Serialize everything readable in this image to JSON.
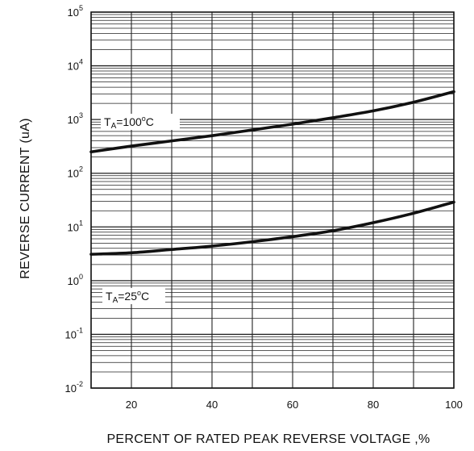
{
  "chart_data": {
    "type": "line",
    "xlabel": "PERCENT OF RATED PEAK REVERSE VOLTAGE ,%",
    "ylabel": "REVERSE CURRENT (uA)",
    "xlim": [
      10,
      100
    ],
    "ylim": [
      0.01,
      100000
    ],
    "yscale": "log",
    "x_ticks": [
      20,
      40,
      60,
      80,
      100
    ],
    "y_ticks": [
      {
        "base": "10",
        "exp": "-2",
        "value": 0.01
      },
      {
        "base": "10",
        "exp": "-1",
        "value": 0.1
      },
      {
        "base": "10",
        "exp": "0",
        "value": 1
      },
      {
        "base": "10",
        "exp": "1",
        "value": 10
      },
      {
        "base": "10",
        "exp": "2",
        "value": 100
      },
      {
        "base": "10",
        "exp": "3",
        "value": 1000
      },
      {
        "base": "10",
        "exp": "4",
        "value": 10000
      },
      {
        "base": "10",
        "exp": "5",
        "value": 100000
      }
    ],
    "grid": true,
    "series": [
      {
        "label_parts": {
          "T": "T",
          "sub": "A",
          "eq": "=100",
          "deg": "o",
          "unit": "C"
        },
        "x": [
          10,
          20,
          30,
          40,
          50,
          60,
          70,
          80,
          90,
          100
        ],
        "y": [
          250,
          320,
          400,
          500,
          640,
          820,
          1080,
          1450,
          2100,
          3300
        ]
      },
      {
        "label_parts": {
          "T": "T",
          "sub": "A",
          "eq": "=25",
          "deg": "o",
          "unit": "C"
        },
        "x": [
          10,
          20,
          30,
          40,
          50,
          60,
          70,
          80,
          90,
          100
        ],
        "y": [
          3.1,
          3.3,
          3.8,
          4.4,
          5.3,
          6.6,
          8.5,
          12,
          18,
          29
        ]
      }
    ]
  }
}
